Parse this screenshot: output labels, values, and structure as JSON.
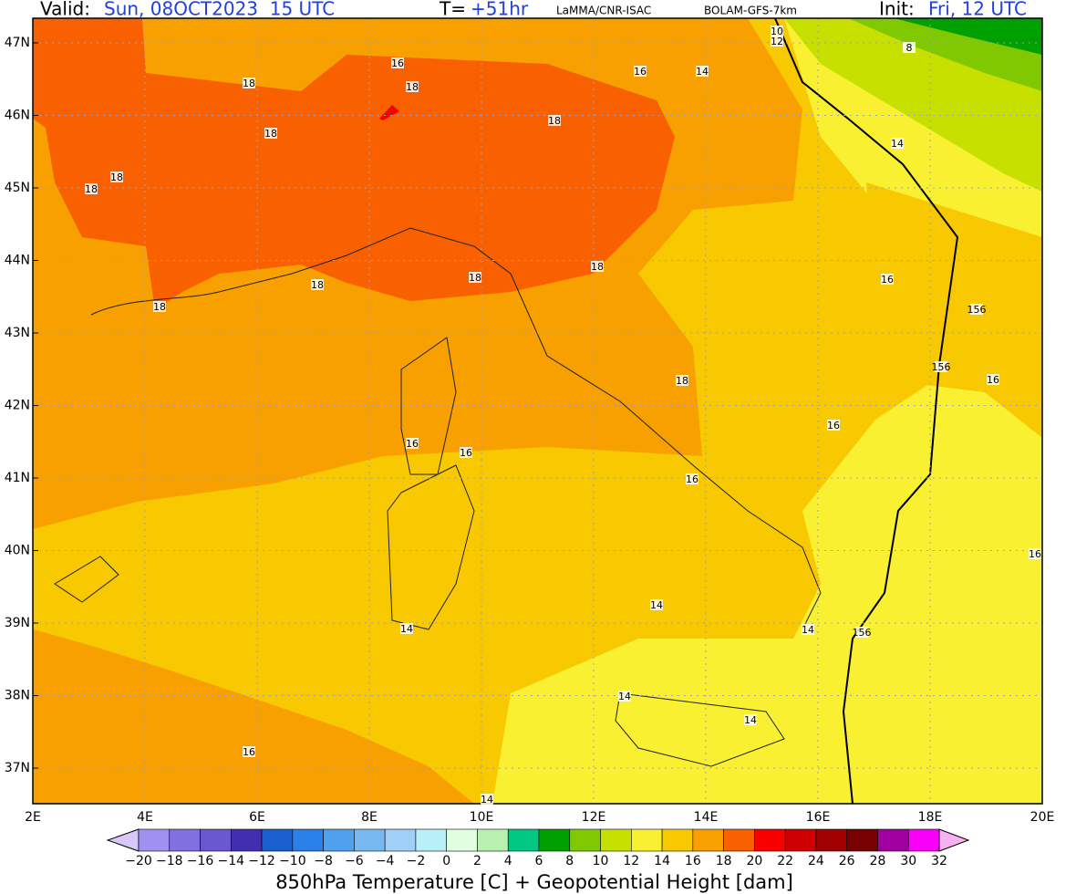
{
  "header": {
    "valid_label": "Valid:",
    "valid": "Sun, 08OCT2023  15 UTC",
    "t_label": "T=",
    "t": "+51hr",
    "source": "LaMMA/CNR-ISAC",
    "model": "BOLAM-GFS-7km",
    "init_label": "Init:",
    "init": "Fri, 12 UTC"
  },
  "lat_labels": [
    "47N",
    "46N",
    "45N",
    "44N",
    "43N",
    "42N",
    "41N",
    "40N",
    "39N",
    "38N",
    "37N"
  ],
  "lon_labels": [
    "2E",
    "4E",
    "6E",
    "8E",
    "10E",
    "12E",
    "14E",
    "16E",
    "18E",
    "20E"
  ],
  "contour_labels": [
    "18",
    "18",
    "18",
    "18",
    "18",
    "18",
    "18",
    "18",
    "18",
    "18",
    "18",
    "16",
    "16",
    "16",
    "16",
    "16",
    "16",
    "16",
    "16",
    "16",
    "16",
    "14",
    "14",
    "14",
    "14",
    "14",
    "14",
    "14",
    "14",
    "10",
    "12",
    "8",
    "156",
    "156",
    "156"
  ],
  "colorbar": {
    "ticks": [
      "−20",
      "−18",
      "−16",
      "−14",
      "−12",
      "−10",
      "−8",
      "−6",
      "−4",
      "−2",
      "0",
      "2",
      "4",
      "6",
      "8",
      "10",
      "12",
      "14",
      "16",
      "18",
      "20",
      "22",
      "24",
      "26",
      "28",
      "30",
      "32"
    ],
    "colors": [
      "#d8c8f8",
      "#a090f0",
      "#8070e0",
      "#6a58d0",
      "#4030b0",
      "#1a5fd0",
      "#2a80e8",
      "#50a0f0",
      "#78b8f0",
      "#a0d0f8",
      "#b8f0f8",
      "#e0ffe0",
      "#b8f0b0",
      "#00c880",
      "#00a000",
      "#80c800",
      "#c8e000",
      "#f8f030",
      "#f8c800",
      "#f8a000",
      "#f86000",
      "#f80000",
      "#d00000",
      "#a00000",
      "#780000",
      "#a000a0",
      "#f800f8",
      "#f8b0f0"
    ],
    "title": "850hPa Temperature [C] + Geopotential Height [dam]"
  }
}
